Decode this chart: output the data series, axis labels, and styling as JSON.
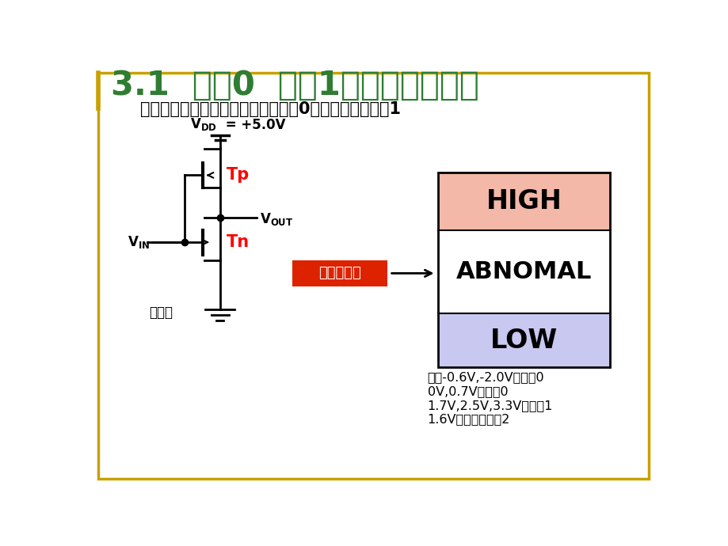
{
  "title": "3.1  逻辑0  逻辑1以及不确定逻辑",
  "subtitle": "不确定逻辑：电路可将其解释为逻辑0也可以解释为逻辑1",
  "title_color": "#2E7D32",
  "subtitle_fontsize": 15,
  "title_fontsize": 30,
  "bg_color": "#FFFFFF",
  "border_color": "#C8A000",
  "high_color": "#F4B8A8",
  "abnomal_color": "#FFFFFF",
  "low_color": "#C8C8F0",
  "box_border_color": "#000000",
  "red_box_color": "#DD2200",
  "note_lines": [
    "因此-0.6V,-2.0V是逻辑0",
    "0V,0.7V是逻辑0",
    "1.7V,2.5V,3.3V为逻辑1",
    "1.6V为不确定逻辑2"
  ],
  "fanxiangqi": "反向器",
  "vin_label": "V",
  "vdd_label": "V",
  "vout_label": "V"
}
